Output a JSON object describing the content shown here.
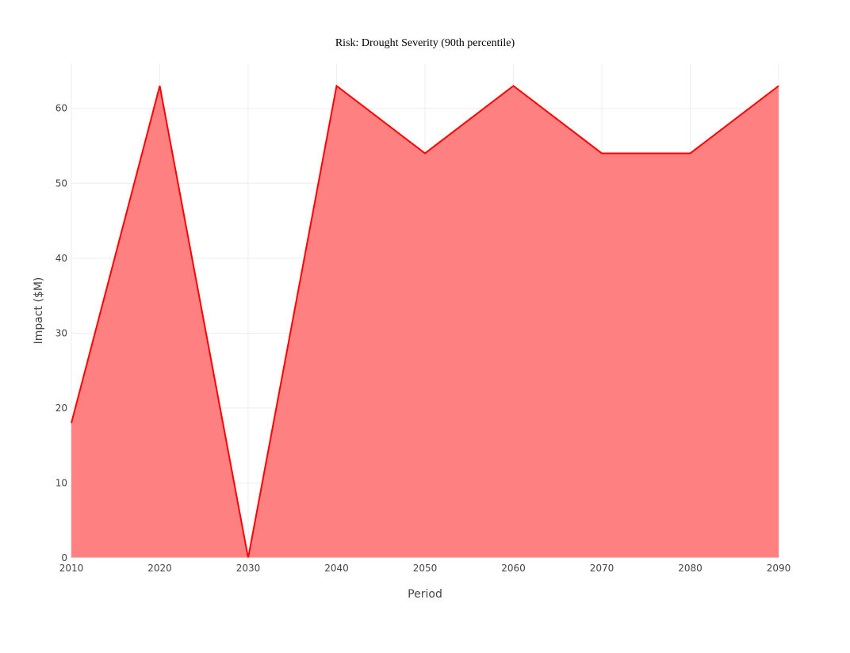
{
  "chart_data": {
    "type": "area",
    "title": "Risk: Drought Severity (90th percentile)",
    "xlabel": "Period",
    "ylabel": "Impact ($M)",
    "x": [
      2010,
      2020,
      2030,
      2040,
      2050,
      2060,
      2070,
      2080,
      2090
    ],
    "series": [
      {
        "values": [
          18,
          63,
          0,
          63,
          54,
          63,
          54,
          54,
          63
        ],
        "line_color": "#ff0000",
        "fill_color": "#ff8080"
      }
    ],
    "xlim": [
      2010,
      2090
    ],
    "ylim": [
      0,
      66
    ],
    "x_ticks": [
      2010,
      2020,
      2030,
      2040,
      2050,
      2060,
      2070,
      2080,
      2090
    ],
    "y_ticks": [
      0,
      10,
      20,
      30,
      40,
      50,
      60
    ],
    "grid": true,
    "legend": false
  }
}
